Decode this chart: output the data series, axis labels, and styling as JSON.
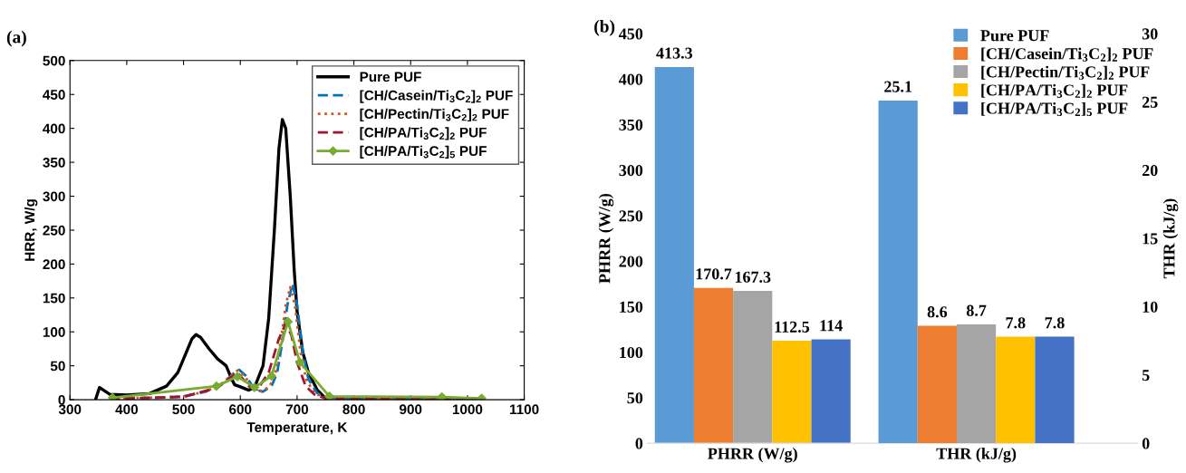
{
  "chart_data": [
    {
      "type": "line",
      "title": "(a)",
      "xlabel": "Temperature, K",
      "ylabel": "HRR, W/g",
      "xlim": [
        300,
        1100
      ],
      "ylim": [
        0,
        500
      ],
      "xticks": [
        300,
        400,
        500,
        600,
        700,
        800,
        900,
        1000,
        1100
      ],
      "yticks": [
        0,
        50,
        100,
        150,
        200,
        250,
        300,
        350,
        400,
        450,
        500
      ],
      "legend": "top right",
      "series": [
        {
          "name": "Pure PUF",
          "color": "#000000",
          "line_style": "solid",
          "x": [
            345,
            352,
            370,
            400,
            440,
            470,
            490,
            505,
            515,
            522,
            530,
            545,
            560,
            575,
            585,
            590,
            600,
            615,
            625,
            640,
            650,
            660,
            668,
            674,
            680,
            688,
            695,
            700,
            710,
            720,
            735,
            750,
            755
          ],
          "values": [
            0,
            18,
            8,
            7,
            9,
            20,
            40,
            70,
            90,
            96,
            92,
            75,
            60,
            50,
            30,
            22,
            19,
            14,
            18,
            50,
            120,
            250,
            370,
            413,
            400,
            300,
            190,
            130,
            70,
            40,
            15,
            2,
            0
          ]
        },
        {
          "name": "[CH/Casein/Ti$_{3}$C$_{2}$]$_{2}$ PUF",
          "color": "#0072bd",
          "line_style": "dashed",
          "x": [
            370,
            450,
            500,
            540,
            570,
            590,
            598,
            610,
            625,
            640,
            655,
            665,
            675,
            683,
            692,
            700,
            710,
            720,
            735,
            750,
            800,
            1025
          ],
          "values": [
            2,
            3,
            5,
            12,
            25,
            40,
            44,
            35,
            15,
            12,
            20,
            40,
            90,
            140,
            171,
            140,
            70,
            30,
            10,
            3,
            1,
            1
          ]
        },
        {
          "name": "[CH/Pectin/Ti$_{3}$C$_{2}$]$_{2}$ PUF",
          "color": "#d95319",
          "line_style": "dotted",
          "x": [
            370,
            450,
            500,
            540,
            570,
            588,
            595,
            608,
            622,
            638,
            652,
            662,
            672,
            680,
            688,
            696,
            706,
            716,
            730,
            748,
            800,
            1025
          ],
          "values": [
            2,
            3,
            5,
            12,
            25,
            39,
            43,
            35,
            15,
            12,
            20,
            40,
            90,
            140,
            166,
            140,
            70,
            30,
            10,
            3,
            1,
            1
          ]
        },
        {
          "name": "[CH/PA/Ti$_{3}$C$_{2}$]$_{2}$ PUF",
          "color": "#a2142f",
          "line_style": "dashed",
          "x": [
            370,
            500,
            560,
            595,
            615,
            630,
            650,
            668,
            680,
            690,
            700,
            715,
            730,
            750,
            1025
          ],
          "values": [
            1,
            4,
            18,
            40,
            20,
            15,
            40,
            90,
            112,
            95,
            55,
            20,
            8,
            2,
            0
          ]
        },
        {
          "name": "[CH/PA/Ti$_{3}$C$_{2}$]$_{5}$ PUF",
          "color": "#77ac30",
          "line_style": "solid",
          "marker": "diamond",
          "x": [
            375,
            558,
            595,
            625,
            655,
            684,
            705,
            757,
            955,
            1025
          ],
          "values": [
            3,
            20,
            34,
            18,
            35,
            115,
            55,
            5,
            4,
            2
          ]
        }
      ]
    },
    {
      "type": "bar",
      "title": "(b)",
      "ylabel": "PHRR (W/g)",
      "y2label": "THR (kJ/g)",
      "categories": [
        "PHRR (W/g)",
        "THR (kJ/g)"
      ],
      "ylim": [
        0,
        450
      ],
      "yticks": [
        0,
        50,
        100,
        150,
        200,
        250,
        300,
        350,
        400,
        450
      ],
      "y2lim": [
        0,
        30
      ],
      "y2ticks": [
        0,
        5,
        10,
        15,
        20,
        25,
        30
      ],
      "legend": "top right",
      "data_labels": true,
      "series": [
        {
          "name": "Pure PUF",
          "color": "#5b9bd5",
          "values": [
            413.3,
            null
          ]
        },
        {
          "name": "[CH/Casein/Ti$_{3}$C$_{2}$]$_{2}$ PUF",
          "color": "#ed7d31",
          "values": [
            170.7,
            null
          ]
        },
        {
          "name": "[CH/Pectin/Ti$_{3}$C$_{2}$]$_{2}$ PUF",
          "color": "#a5a5a5",
          "values": [
            167.3,
            null
          ]
        },
        {
          "name": "[CH/PA/Ti$_{3}$C$_{2}$]$_{2}$ PUF",
          "color": "#ffc000",
          "values": [
            112.5,
            null
          ]
        },
        {
          "name": "[CH/PA/Ti$_{3}$C$_{2}$]$_{5}$ PUF",
          "color": "#4472c4",
          "values": [
            114,
            null
          ]
        },
        {
          "color": "#5b9bd5",
          "axis": "y2",
          "values": [
            null,
            25.1
          ]
        },
        {
          "color": "#ed7d31",
          "axis": "y2",
          "values": [
            null,
            8.6
          ]
        },
        {
          "color": "#a5a5a5",
          "axis": "y2",
          "values": [
            null,
            8.7
          ]
        },
        {
          "color": "#ffc000",
          "axis": "y2",
          "values": [
            null,
            7.8
          ]
        },
        {
          "color": "#4472c4",
          "axis": "y2",
          "values": [
            null,
            7.8
          ]
        }
      ]
    }
  ]
}
